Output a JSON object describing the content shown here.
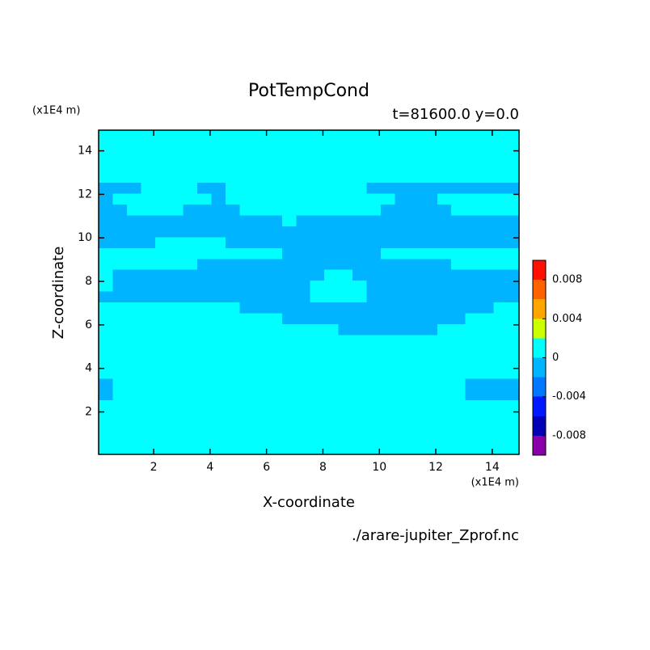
{
  "chart_data": {
    "type": "heatmap",
    "title": "PotTempCond",
    "subtitle": "t=81600.0 y=0.0",
    "x_label": "X-coordinate",
    "y_label": "Z-coordinate",
    "x_unit": "(x1E4 m)",
    "y_unit": "(x1E4 m)",
    "footer": "./arare-jupiter_Zprof.nc",
    "xlim": [
      0.05,
      14.95
    ],
    "ylim": [
      0.05,
      14.95
    ],
    "xticks": [
      2,
      4,
      6,
      8,
      10,
      12,
      14
    ],
    "yticks": [
      2,
      4,
      6,
      8,
      10,
      12,
      14
    ],
    "x": [
      0.3,
      0.8,
      1.3,
      1.8,
      2.3,
      2.8,
      3.3,
      3.8,
      4.3,
      4.8,
      5.3,
      5.8,
      6.3,
      6.8,
      7.3,
      7.8,
      8.3,
      8.8,
      9.3,
      9.8,
      10.3,
      10.8,
      11.3,
      11.8,
      12.3,
      12.8,
      13.3,
      13.8,
      14.3,
      14.8
    ],
    "y": [
      0.3,
      0.8,
      1.3,
      1.8,
      2.3,
      2.8,
      3.3,
      3.8,
      4.3,
      4.8,
      5.3,
      5.8,
      6.3,
      6.8,
      7.3,
      7.8,
      8.3,
      8.8,
      9.3,
      9.8,
      10.3,
      10.8,
      11.3,
      11.8,
      12.3,
      12.8,
      13.3,
      13.8,
      14.3,
      14.8
    ],
    "z": [
      [
        0.001,
        0.001,
        0.001,
        0.001,
        0.001,
        0.001,
        0.001,
        0.001,
        0.001,
        0.001,
        0.001,
        0.001,
        0.001,
        0.001,
        0.001,
        0.001,
        0.001,
        0.001,
        0.001,
        0.001,
        0.001,
        0.001,
        0.001,
        0.001,
        0.001,
        0.001,
        0.001,
        0.001,
        0.001,
        0.001
      ],
      [
        0.001,
        0.001,
        0.001,
        0.001,
        0.001,
        0.001,
        0.001,
        0.001,
        0.001,
        0.001,
        0.001,
        0.001,
        0.001,
        0.001,
        0.001,
        0.001,
        0.001,
        0.001,
        0.001,
        0.001,
        0.001,
        0.001,
        0.001,
        0.001,
        0.001,
        0.001,
        0.001,
        0.001,
        0.001,
        0.001
      ],
      [
        0.001,
        0.001,
        0.001,
        0.001,
        0.001,
        0.001,
        0.001,
        0.001,
        0.001,
        0.001,
        0.001,
        0.001,
        0.001,
        0.001,
        0.001,
        0.001,
        0.001,
        0.001,
        0.001,
        0.001,
        0.001,
        0.001,
        0.001,
        0.001,
        0.001,
        0.001,
        0.001,
        0.001,
        0.001,
        0.001
      ],
      [
        0.001,
        0.001,
        0.001,
        0.001,
        0.001,
        0.001,
        0.001,
        0.001,
        0.001,
        0.001,
        0.001,
        0.001,
        0.001,
        0.001,
        0.001,
        0.001,
        0.001,
        0.001,
        0.001,
        0.001,
        0.001,
        0.001,
        0.001,
        0.001,
        0.001,
        0.001,
        0.001,
        0.001,
        0.001,
        0.001
      ],
      [
        0.001,
        0.001,
        0.001,
        0.001,
        0.001,
        0.001,
        0.001,
        0.001,
        0.001,
        0.001,
        0.001,
        0.001,
        0.001,
        0.001,
        0.001,
        0.001,
        0.001,
        0.001,
        0.001,
        0.001,
        0.001,
        0.001,
        0.001,
        0.001,
        0.001,
        0.001,
        0.001,
        0.001,
        0.001,
        0.001
      ],
      [
        -0.001,
        0.001,
        0.001,
        0.001,
        0.001,
        0.001,
        0.001,
        0.001,
        0.001,
        0.001,
        0.001,
        0.001,
        0.001,
        0.001,
        0.001,
        0.001,
        0.001,
        0.001,
        0.001,
        0.001,
        0.001,
        0.001,
        0.001,
        0.001,
        0.001,
        0.001,
        -0.001,
        -0.001,
        -0.001,
        -0.001
      ],
      [
        -0.001,
        0.001,
        0.001,
        0.001,
        0.001,
        0.001,
        0.001,
        0.001,
        0.001,
        0.001,
        0.001,
        0.001,
        0.001,
        0.001,
        0.001,
        0.001,
        0.001,
        0.001,
        0.001,
        0.001,
        0.001,
        0.001,
        0.001,
        0.001,
        0.001,
        0.001,
        -0.001,
        -0.001,
        -0.001,
        -0.001
      ],
      [
        0.001,
        0.001,
        0.001,
        0.001,
        0.001,
        0.001,
        0.001,
        0.001,
        0.001,
        0.001,
        0.001,
        0.001,
        0.001,
        0.001,
        0.001,
        0.001,
        0.001,
        0.001,
        0.001,
        0.001,
        0.001,
        0.001,
        0.001,
        0.001,
        0.001,
        0.001,
        0.001,
        0.001,
        0.001,
        0.001
      ],
      [
        0.001,
        0.001,
        0.001,
        0.001,
        0.001,
        0.001,
        0.001,
        0.001,
        0.001,
        0.001,
        0.001,
        0.001,
        0.001,
        0.001,
        0.001,
        0.001,
        0.001,
        0.001,
        0.001,
        0.001,
        0.001,
        0.001,
        0.001,
        0.001,
        0.001,
        0.001,
        0.001,
        0.001,
        0.001,
        0.001
      ],
      [
        0.001,
        0.001,
        0.001,
        0.001,
        0.001,
        0.001,
        0.001,
        0.001,
        0.001,
        0.001,
        0.001,
        0.001,
        0.001,
        0.001,
        0.001,
        0.001,
        0.001,
        0.001,
        0.001,
        0.001,
        0.001,
        0.001,
        0.001,
        0.001,
        0.001,
        0.001,
        0.001,
        0.001,
        0.001,
        0.001
      ],
      [
        0.001,
        0.001,
        0.001,
        0.001,
        0.001,
        0.001,
        0.001,
        0.001,
        0.001,
        0.001,
        0.001,
        0.001,
        0.001,
        0.001,
        0.001,
        0.001,
        0.001,
        0.001,
        0.001,
        0.001,
        0.001,
        0.001,
        0.001,
        0.001,
        0.001,
        0.001,
        0.001,
        0.001,
        0.001,
        0.001
      ],
      [
        0.001,
        0.001,
        0.001,
        0.001,
        0.001,
        0.001,
        0.001,
        0.001,
        0.001,
        0.001,
        0.001,
        0.001,
        0.001,
        0.001,
        0.001,
        0.001,
        0.001,
        -0.001,
        -0.001,
        -0.001,
        -0.001,
        -0.001,
        -0.001,
        -0.001,
        0.001,
        0.001,
        0.001,
        0.001,
        0.001,
        0.001
      ],
      [
        0.001,
        0.001,
        0.001,
        0.001,
        0.001,
        0.001,
        0.001,
        0.001,
        0.001,
        0.001,
        0.001,
        0.001,
        0.001,
        -0.001,
        -0.001,
        -0.001,
        -0.001,
        -0.001,
        -0.001,
        -0.001,
        -0.001,
        -0.001,
        -0.001,
        -0.001,
        -0.001,
        -0.001,
        0.001,
        0.001,
        0.001,
        0.001
      ],
      [
        0.001,
        0.001,
        0.001,
        0.001,
        0.001,
        0.001,
        0.001,
        0.001,
        0.001,
        0.001,
        -0.001,
        -0.001,
        -0.001,
        -0.001,
        -0.001,
        -0.001,
        -0.001,
        -0.001,
        -0.001,
        -0.001,
        -0.001,
        -0.001,
        -0.001,
        -0.001,
        -0.001,
        -0.001,
        -0.001,
        -0.001,
        0.001,
        0.001
      ],
      [
        -0.001,
        -0.001,
        -0.001,
        -0.001,
        -0.001,
        -0.001,
        -0.001,
        -0.001,
        -0.001,
        -0.001,
        -0.001,
        -0.001,
        -0.001,
        -0.001,
        -0.001,
        0.001,
        0.001,
        0.001,
        0.001,
        -0.001,
        -0.001,
        -0.001,
        -0.001,
        -0.001,
        -0.001,
        -0.001,
        -0.001,
        -0.001,
        -0.001,
        -0.001
      ],
      [
        0.001,
        -0.001,
        -0.001,
        -0.001,
        -0.001,
        -0.001,
        -0.001,
        -0.001,
        -0.001,
        -0.001,
        -0.001,
        -0.001,
        -0.001,
        -0.001,
        -0.001,
        0.001,
        0.001,
        0.001,
        0.001,
        -0.001,
        -0.001,
        -0.001,
        -0.001,
        -0.001,
        -0.001,
        -0.001,
        -0.001,
        -0.001,
        -0.001,
        -0.001
      ],
      [
        0.001,
        -0.001,
        -0.001,
        -0.001,
        -0.001,
        -0.001,
        -0.001,
        -0.001,
        -0.001,
        -0.001,
        -0.001,
        -0.001,
        -0.001,
        -0.001,
        -0.001,
        -0.001,
        0.001,
        0.001,
        -0.001,
        -0.001,
        -0.001,
        -0.001,
        -0.001,
        -0.001,
        -0.001,
        -0.001,
        -0.001,
        -0.001,
        -0.001,
        -0.001
      ],
      [
        0.001,
        0.001,
        0.001,
        0.001,
        0.001,
        0.001,
        0.001,
        -0.001,
        -0.001,
        -0.001,
        -0.001,
        -0.001,
        -0.001,
        -0.001,
        -0.001,
        -0.001,
        -0.001,
        -0.001,
        -0.001,
        -0.001,
        -0.001,
        -0.001,
        -0.001,
        -0.001,
        -0.001,
        0.001,
        0.001,
        0.001,
        0.001,
        0.001
      ],
      [
        0.001,
        0.001,
        0.001,
        0.001,
        0.001,
        0.001,
        0.001,
        0.001,
        0.001,
        0.001,
        0.001,
        0.001,
        0.001,
        -0.001,
        -0.001,
        -0.001,
        -0.001,
        -0.001,
        -0.001,
        -0.001,
        0.001,
        0.001,
        0.001,
        0.001,
        0.001,
        0.001,
        0.001,
        0.001,
        0.001,
        0.001
      ],
      [
        -0.001,
        -0.001,
        -0.001,
        -0.001,
        0.001,
        0.001,
        0.001,
        0.001,
        0.001,
        -0.001,
        -0.001,
        -0.001,
        -0.001,
        -0.001,
        -0.001,
        -0.001,
        -0.001,
        -0.001,
        -0.001,
        -0.001,
        -0.001,
        -0.001,
        -0.001,
        -0.001,
        -0.001,
        -0.001,
        -0.001,
        -0.001,
        -0.001,
        -0.001
      ],
      [
        -0.001,
        -0.001,
        -0.001,
        -0.001,
        -0.001,
        -0.001,
        -0.001,
        -0.001,
        -0.001,
        -0.001,
        -0.001,
        -0.001,
        -0.001,
        -0.001,
        -0.001,
        -0.001,
        -0.001,
        -0.001,
        -0.001,
        -0.001,
        -0.001,
        -0.001,
        -0.001,
        -0.001,
        -0.001,
        -0.001,
        -0.001,
        -0.001,
        -0.001,
        -0.001
      ],
      [
        -0.001,
        -0.001,
        -0.001,
        -0.001,
        -0.001,
        -0.001,
        -0.001,
        -0.001,
        -0.001,
        -0.001,
        -0.001,
        -0.001,
        -0.001,
        0.001,
        -0.001,
        -0.001,
        -0.001,
        -0.001,
        -0.001,
        -0.001,
        -0.001,
        -0.001,
        -0.001,
        -0.001,
        -0.001,
        -0.001,
        -0.001,
        -0.001,
        -0.001,
        -0.001
      ],
      [
        -0.001,
        -0.001,
        0.001,
        0.001,
        0.001,
        0.001,
        -0.001,
        -0.001,
        -0.001,
        -0.001,
        0.001,
        0.001,
        0.001,
        0.001,
        0.001,
        0.001,
        0.001,
        0.001,
        0.001,
        0.001,
        -0.001,
        -0.001,
        -0.001,
        -0.001,
        -0.001,
        0.001,
        0.001,
        0.001,
        0.001,
        0.001
      ],
      [
        -0.001,
        0.001,
        0.001,
        0.001,
        0.001,
        0.001,
        0.001,
        0.001,
        -0.001,
        0.001,
        0.001,
        0.001,
        0.001,
        0.001,
        0.001,
        0.001,
        0.001,
        0.001,
        0.001,
        0.001,
        0.001,
        -0.001,
        -0.001,
        -0.001,
        0.001,
        0.001,
        0.001,
        0.001,
        0.001,
        0.001
      ],
      [
        -0.001,
        -0.001,
        -0.001,
        0.001,
        0.001,
        0.001,
        0.001,
        -0.001,
        -0.001,
        0.001,
        0.001,
        0.001,
        0.001,
        0.001,
        0.001,
        0.001,
        0.001,
        0.001,
        0.001,
        -0.001,
        -0.001,
        -0.001,
        -0.001,
        -0.001,
        -0.001,
        -0.001,
        -0.001,
        -0.001,
        -0.001,
        -0.001
      ],
      [
        0.001,
        0.001,
        0.001,
        0.001,
        0.001,
        0.001,
        0.001,
        0.001,
        0.001,
        0.001,
        0.001,
        0.001,
        0.001,
        0.001,
        0.001,
        0.001,
        0.001,
        0.001,
        0.001,
        0.001,
        0.001,
        0.001,
        0.001,
        0.001,
        0.001,
        0.001,
        0.001,
        0.001,
        0.001,
        0.001
      ],
      [
        0.001,
        0.001,
        0.001,
        0.001,
        0.001,
        0.001,
        0.001,
        0.001,
        0.001,
        0.001,
        0.001,
        0.001,
        0.001,
        0.001,
        0.001,
        0.001,
        0.001,
        0.001,
        0.001,
        0.001,
        0.001,
        0.001,
        0.001,
        0.001,
        0.001,
        0.001,
        0.001,
        0.001,
        0.001,
        0.001
      ],
      [
        0.001,
        0.001,
        0.001,
        0.001,
        0.001,
        0.001,
        0.001,
        0.001,
        0.001,
        0.001,
        0.001,
        0.001,
        0.001,
        0.001,
        0.001,
        0.001,
        0.001,
        0.001,
        0.001,
        0.001,
        0.001,
        0.001,
        0.001,
        0.001,
        0.001,
        0.001,
        0.001,
        0.001,
        0.001,
        0.001
      ],
      [
        0.001,
        0.001,
        0.001,
        0.001,
        0.001,
        0.001,
        0.001,
        0.001,
        0.001,
        0.001,
        0.001,
        0.001,
        0.001,
        0.001,
        0.001,
        0.001,
        0.001,
        0.001,
        0.001,
        0.001,
        0.001,
        0.001,
        0.001,
        0.001,
        0.001,
        0.001,
        0.001,
        0.001,
        0.001,
        0.001
      ],
      [
        0.001,
        0.001,
        0.001,
        0.001,
        0.001,
        0.001,
        0.001,
        0.001,
        0.001,
        0.001,
        0.001,
        0.001,
        0.001,
        0.001,
        0.001,
        0.001,
        0.001,
        0.001,
        0.001,
        0.001,
        0.001,
        0.001,
        0.001,
        0.001,
        0.001,
        0.001,
        0.001,
        0.001,
        0.001,
        0.001
      ]
    ],
    "levels": [
      -0.01,
      -0.008,
      -0.006,
      -0.004,
      -0.002,
      0,
      0.002,
      0.004,
      0.006,
      0.008,
      0.01
    ],
    "colors": [
      "#8a00a8",
      "#0000b4",
      "#0018ff",
      "#0078ff",
      "#00b4ff",
      "#00ffff",
      "#ccff00",
      "#ffa500",
      "#ff6000",
      "#ff1000",
      "#ffb0b0"
    ],
    "colorbar_ticks": [
      -0.008,
      -0.004,
      0,
      0.004,
      0.008
    ]
  }
}
